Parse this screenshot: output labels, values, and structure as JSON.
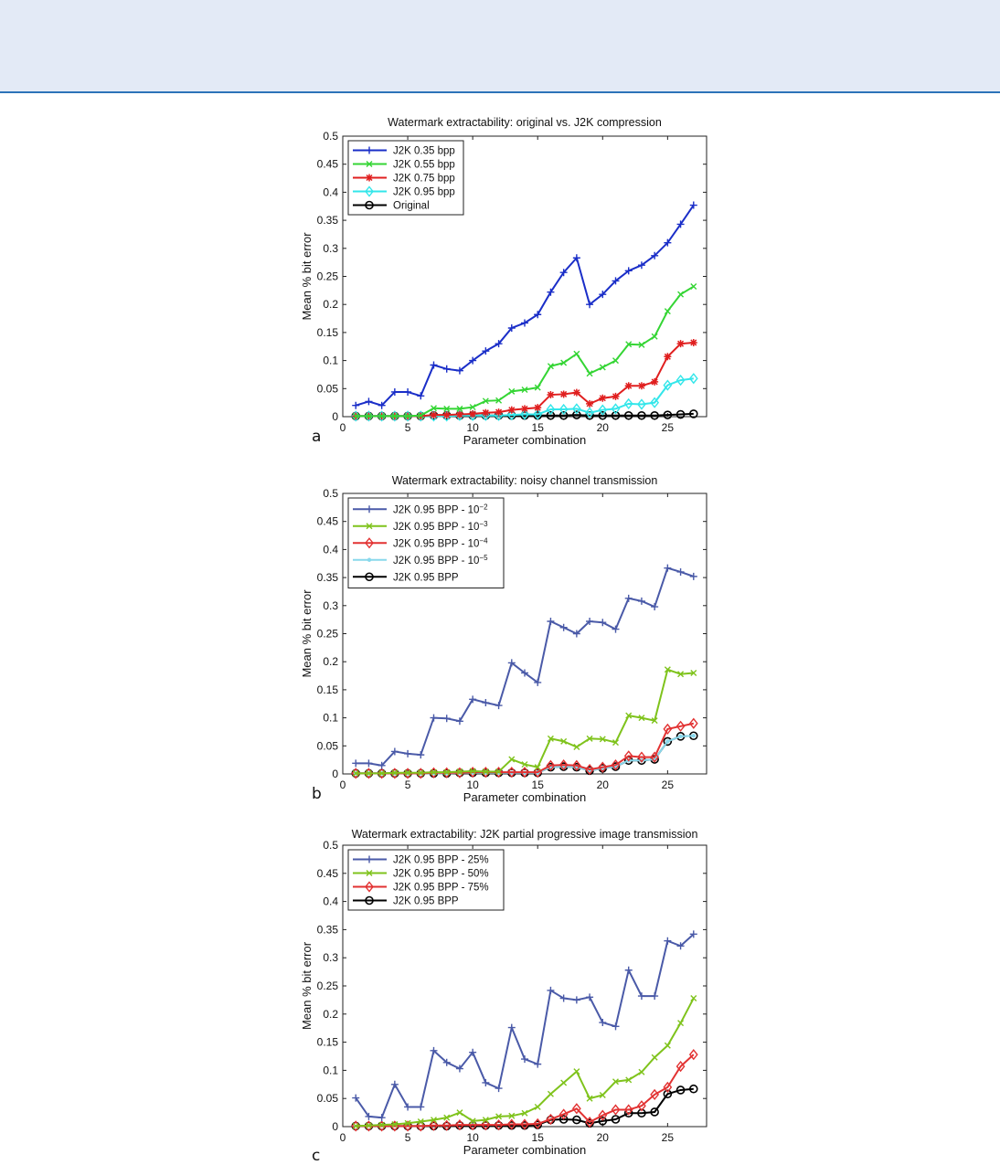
{
  "chart_data": [
    {
      "panel": "a",
      "type": "line",
      "title": "Watermark extractability: original vs. J2K compression",
      "xlabel": "Parameter combination",
      "ylabel": "Mean % bit error",
      "xlim": [
        0,
        28
      ],
      "ylim": [
        0,
        0.5
      ],
      "xticks": [
        0,
        5,
        10,
        15,
        20,
        25
      ],
      "yticks": [
        0,
        0.05,
        0.1,
        0.15,
        0.2,
        0.25,
        0.3,
        0.35,
        0.4,
        0.45,
        0.5
      ],
      "legend_position": "top-left",
      "x": [
        1,
        2,
        3,
        4,
        5,
        6,
        7,
        8,
        9,
        10,
        11,
        12,
        13,
        14,
        15,
        16,
        17,
        18,
        19,
        20,
        21,
        22,
        23,
        24,
        25,
        26,
        27
      ],
      "series": [
        {
          "name": "J2K 0.35 bpp",
          "color": "#1a2ec8",
          "marker": "plus",
          "values": [
            0.02,
            0.027,
            0.02,
            0.044,
            0.044,
            0.037,
            0.092,
            0.085,
            0.082,
            0.1,
            0.117,
            0.13,
            0.158,
            0.167,
            0.182,
            0.222,
            0.257,
            0.283,
            0.2,
            0.218,
            0.242,
            0.26,
            0.27,
            0.287,
            0.31,
            0.343,
            0.377
          ]
        },
        {
          "name": "J2K 0.55 bpp",
          "color": "#34d534",
          "marker": "x",
          "values": [
            0.001,
            0.001,
            0.001,
            0.001,
            0.001,
            0.002,
            0.015,
            0.014,
            0.014,
            0.017,
            0.028,
            0.029,
            0.045,
            0.048,
            0.052,
            0.09,
            0.096,
            0.112,
            0.077,
            0.088,
            0.1,
            0.129,
            0.128,
            0.143,
            0.188,
            0.218,
            0.232
          ]
        },
        {
          "name": "J2K 0.75 bpp",
          "color": "#e01f1f",
          "marker": "star",
          "values": [
            0.001,
            0.001,
            0.001,
            0.001,
            0.001,
            0.001,
            0.003,
            0.003,
            0.004,
            0.005,
            0.007,
            0.008,
            0.012,
            0.014,
            0.016,
            0.039,
            0.04,
            0.043,
            0.023,
            0.033,
            0.036,
            0.055,
            0.055,
            0.062,
            0.107,
            0.13,
            0.132
          ]
        },
        {
          "name": "J2K 0.95 bpp",
          "color": "#33e6ea",
          "marker": "diamond",
          "values": [
            0.001,
            0.001,
            0.001,
            0.001,
            0.001,
            0.001,
            0.001,
            0.001,
            0.002,
            0.002,
            0.002,
            0.002,
            0.003,
            0.004,
            0.004,
            0.013,
            0.013,
            0.014,
            0.007,
            0.012,
            0.014,
            0.023,
            0.022,
            0.025,
            0.056,
            0.065,
            0.068
          ]
        },
        {
          "name": "Original",
          "color": "#000000",
          "marker": "circle",
          "values": [
            0.001,
            0.001,
            0.001,
            0.001,
            0.001,
            0.001,
            0.002,
            0.002,
            0.002,
            0.002,
            0.002,
            0.002,
            0.002,
            0.002,
            0.002,
            0.002,
            0.002,
            0.003,
            0.002,
            0.002,
            0.002,
            0.002,
            0.002,
            0.002,
            0.003,
            0.004,
            0.005
          ]
        }
      ]
    },
    {
      "panel": "b",
      "type": "line",
      "title": "Watermark extractability: noisy channel transmission",
      "xlabel": "Parameter combination",
      "ylabel": "Mean % bit error",
      "xlim": [
        0,
        28
      ],
      "ylim": [
        0,
        0.5
      ],
      "xticks": [
        0,
        5,
        10,
        15,
        20,
        25
      ],
      "yticks": [
        0,
        0.05,
        0.1,
        0.15,
        0.2,
        0.25,
        0.3,
        0.35,
        0.4,
        0.45,
        0.5
      ],
      "legend_position": "top-left",
      "x": [
        1,
        2,
        3,
        4,
        5,
        6,
        7,
        8,
        9,
        10,
        11,
        12,
        13,
        14,
        15,
        16,
        17,
        18,
        19,
        20,
        21,
        22,
        23,
        24,
        25,
        26,
        27
      ],
      "series": [
        {
          "name": "J2K 0.95 BPP - 10",
          "exp": "−2",
          "color": "#4a5aa8",
          "marker": "plus",
          "values": [
            0.019,
            0.019,
            0.015,
            0.04,
            0.036,
            0.034,
            0.1,
            0.099,
            0.094,
            0.133,
            0.127,
            0.122,
            0.198,
            0.18,
            0.163,
            0.272,
            0.261,
            0.25,
            0.272,
            0.27,
            0.258,
            0.313,
            0.308,
            0.298,
            0.367,
            0.36,
            0.352
          ]
        },
        {
          "name": "J2K 0.95 BPP - 10",
          "exp": "−3",
          "color": "#7fc31c",
          "marker": "x",
          "values": [
            0.001,
            0.001,
            0.001,
            0.002,
            0.002,
            0.002,
            0.003,
            0.003,
            0.004,
            0.005,
            0.004,
            0.004,
            0.026,
            0.017,
            0.012,
            0.063,
            0.058,
            0.048,
            0.063,
            0.062,
            0.056,
            0.104,
            0.1,
            0.095,
            0.186,
            0.178,
            0.18
          ]
        },
        {
          "name": "J2K 0.95 BPP - 10",
          "exp": "−4",
          "color": "#e23232",
          "marker": "diamond",
          "values": [
            0.001,
            0.001,
            0.001,
            0.001,
            0.001,
            0.001,
            0.002,
            0.002,
            0.002,
            0.003,
            0.003,
            0.003,
            0.003,
            0.003,
            0.003,
            0.015,
            0.016,
            0.015,
            0.008,
            0.012,
            0.016,
            0.032,
            0.03,
            0.03,
            0.08,
            0.085,
            0.09
          ]
        },
        {
          "name": "J2K 0.95 BPP - 10",
          "exp": "−5",
          "color": "#88d8ec",
          "marker": "dot",
          "values": [
            0.001,
            0.001,
            0.001,
            0.001,
            0.001,
            0.001,
            0.001,
            0.001,
            0.002,
            0.002,
            0.002,
            0.002,
            0.002,
            0.002,
            0.002,
            0.012,
            0.013,
            0.012,
            0.006,
            0.01,
            0.013,
            0.024,
            0.024,
            0.026,
            0.058,
            0.067,
            0.068
          ]
        },
        {
          "name": "J2K 0.95 BPP",
          "exp": "",
          "color": "#000000",
          "marker": "circle",
          "values": [
            0.001,
            0.001,
            0.001,
            0.001,
            0.001,
            0.001,
            0.001,
            0.001,
            0.002,
            0.002,
            0.002,
            0.002,
            0.002,
            0.002,
            0.002,
            0.012,
            0.013,
            0.012,
            0.006,
            0.01,
            0.013,
            0.024,
            0.024,
            0.026,
            0.058,
            0.067,
            0.068
          ]
        }
      ]
    },
    {
      "panel": "c",
      "type": "line",
      "title": "Watermark extractability: J2K partial progressive image transmission",
      "xlabel": "Parameter combination",
      "ylabel": "Mean % bit error",
      "xlim": [
        0,
        28
      ],
      "ylim": [
        0,
        0.5
      ],
      "xticks": [
        0,
        5,
        10,
        15,
        20,
        25
      ],
      "yticks": [
        0,
        0.05,
        0.1,
        0.15,
        0.2,
        0.25,
        0.3,
        0.35,
        0.4,
        0.45,
        0.5
      ],
      "legend_position": "top-left",
      "x": [
        1,
        2,
        3,
        4,
        5,
        6,
        7,
        8,
        9,
        10,
        11,
        12,
        13,
        14,
        15,
        16,
        17,
        18,
        19,
        20,
        21,
        22,
        23,
        24,
        25,
        26,
        27
      ],
      "series": [
        {
          "name": "J2K 0.95 BPP - 25%",
          "color": "#4a5aa8",
          "marker": "plus",
          "values": [
            0.051,
            0.018,
            0.016,
            0.075,
            0.035,
            0.035,
            0.135,
            0.114,
            0.103,
            0.132,
            0.078,
            0.068,
            0.176,
            0.12,
            0.111,
            0.242,
            0.228,
            0.225,
            0.23,
            0.185,
            0.178,
            0.278,
            0.232,
            0.232,
            0.33,
            0.321,
            0.342
          ]
        },
        {
          "name": "J2K 0.95 BPP - 50%",
          "color": "#7fc31c",
          "marker": "x",
          "values": [
            0.001,
            0.002,
            0.003,
            0.004,
            0.006,
            0.009,
            0.012,
            0.016,
            0.025,
            0.01,
            0.012,
            0.018,
            0.019,
            0.024,
            0.035,
            0.058,
            0.078,
            0.098,
            0.05,
            0.056,
            0.08,
            0.083,
            0.097,
            0.123,
            0.144,
            0.184,
            0.228
          ]
        },
        {
          "name": "J2K 0.95 BPP - 75%",
          "color": "#e23232",
          "marker": "diamond",
          "values": [
            0.001,
            0.001,
            0.001,
            0.001,
            0.001,
            0.001,
            0.002,
            0.002,
            0.003,
            0.003,
            0.003,
            0.003,
            0.004,
            0.004,
            0.005,
            0.013,
            0.022,
            0.032,
            0.008,
            0.02,
            0.03,
            0.03,
            0.037,
            0.057,
            0.07,
            0.107,
            0.128
          ]
        },
        {
          "name": "J2K 0.95 BPP",
          "color": "#000000",
          "marker": "circle",
          "values": [
            0.001,
            0.001,
            0.001,
            0.001,
            0.001,
            0.001,
            0.001,
            0.001,
            0.002,
            0.002,
            0.002,
            0.002,
            0.002,
            0.002,
            0.003,
            0.012,
            0.013,
            0.012,
            0.006,
            0.01,
            0.013,
            0.024,
            0.024,
            0.026,
            0.058,
            0.065,
            0.067
          ]
        }
      ]
    }
  ],
  "panel_letters": [
    "a",
    "b",
    "c"
  ]
}
